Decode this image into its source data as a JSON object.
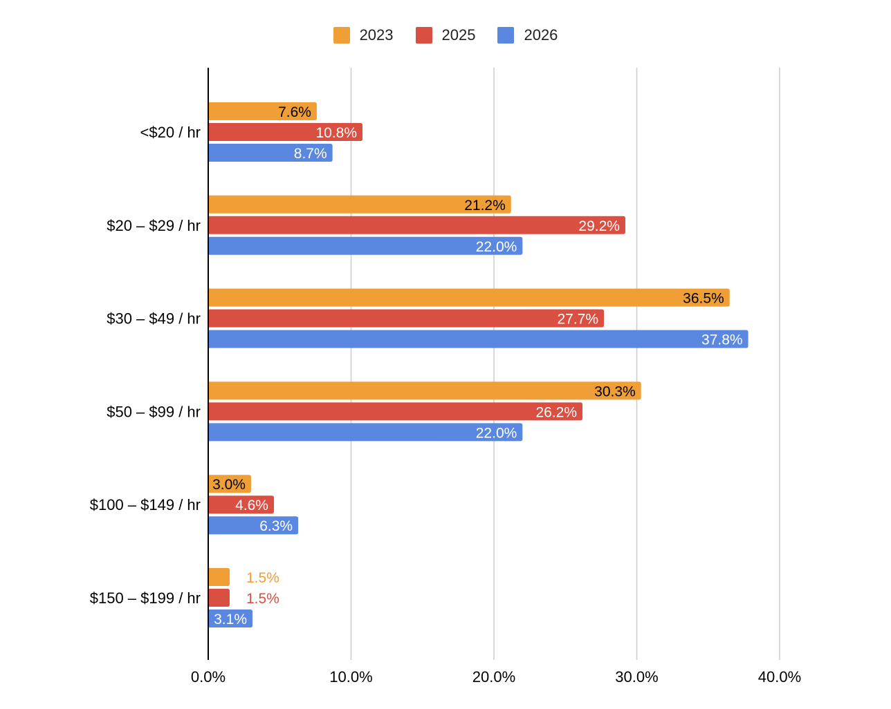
{
  "chart_data": {
    "type": "bar",
    "orientation": "horizontal",
    "categories": [
      "<$20 / hr",
      "$20 – $29 / hr",
      "$30 – $49 / hr",
      "$50 – $99 / hr",
      "$100 – $149 / hr",
      "$150 – $199 / hr"
    ],
    "series": [
      {
        "name": "2023",
        "color": "#f09e36",
        "label_color": "#000000",
        "values": [
          7.6,
          21.2,
          36.5,
          30.3,
          3.0,
          1.5
        ],
        "labels": [
          "7.6%",
          "21.2%",
          "36.5%",
          "30.3%",
          "3.0%",
          "1.5%"
        ]
      },
      {
        "name": "2025",
        "color": "#d94f41",
        "label_color": "#ffffff",
        "values": [
          10.8,
          29.2,
          27.7,
          26.2,
          4.6,
          1.5
        ],
        "labels": [
          "10.8%",
          "29.2%",
          "27.7%",
          "26.2%",
          "4.6%",
          "1.5%"
        ]
      },
      {
        "name": "2026",
        "color": "#5a87e0",
        "label_color": "#ffffff",
        "values": [
          8.7,
          22.0,
          37.8,
          22.0,
          6.3,
          3.1
        ],
        "labels": [
          "8.7%",
          "22.0%",
          "37.8%",
          "22.0%",
          "6.3%",
          "3.1%"
        ]
      }
    ],
    "xlim": [
      0,
      40
    ],
    "xticks": [
      0,
      10,
      20,
      30,
      40
    ],
    "xtick_labels": [
      "0.0%",
      "10.0%",
      "20.0%",
      "30.0%",
      "40.0%"
    ],
    "grid": true,
    "legend_position": "top-center",
    "title": "",
    "xlabel": "",
    "ylabel": ""
  }
}
